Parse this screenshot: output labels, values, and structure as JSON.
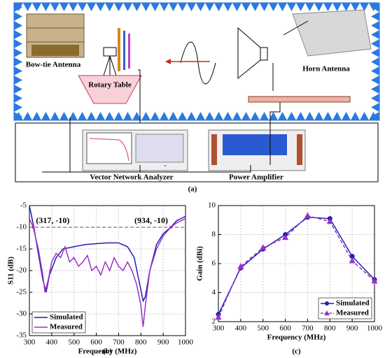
{
  "diagram": {
    "labels": {
      "bowtie": "Bow-tie Antenna",
      "rotary": "Rotary Table",
      "horn": "Horn Antenna",
      "vna": "Vector Network Analyzer",
      "pa": "Power Amplifier"
    },
    "caption": "(a)"
  },
  "chart_data": [
    {
      "type": "line",
      "caption": "(b)",
      "xlabel": "Frequency (MHz)",
      "ylabel": "S11 (dB)",
      "xlim": [
        300,
        1000
      ],
      "xticks": [
        300,
        400,
        500,
        600,
        700,
        800,
        900,
        1000
      ],
      "ylim": [
        -35,
        -5
      ],
      "yticks": [
        -35,
        -30,
        -25,
        -20,
        -15,
        -10,
        -5
      ],
      "grid": true,
      "legend": "lower left",
      "reference_line": -10,
      "annotations": [
        {
          "text": "(317, -10)",
          "x": 317,
          "y": -10
        },
        {
          "text": "(934, -10)",
          "x": 934,
          "y": -10
        }
      ],
      "series": [
        {
          "name": "Simulated",
          "color": "#1f1fb0",
          "linestyle": "solid",
          "x": [
            300,
            320,
            340,
            360,
            375,
            390,
            420,
            450,
            500,
            550,
            600,
            650,
            700,
            740,
            770,
            790,
            810,
            820,
            840,
            870,
            900,
            934,
            960,
            1000
          ],
          "values": [
            -5,
            -10,
            -16,
            -22,
            -25,
            -21,
            -17,
            -15,
            -14.5,
            -14,
            -13.8,
            -13.6,
            -13.6,
            -14.5,
            -17,
            -22,
            -27,
            -26,
            -20,
            -14,
            -11.5,
            -10,
            -8.5,
            -7.5
          ]
        },
        {
          "name": "Measured",
          "color": "#9b30c8",
          "linestyle": "solid",
          "x": [
            300,
            317,
            340,
            360,
            370,
            385,
            400,
            420,
            440,
            460,
            480,
            500,
            520,
            540,
            560,
            580,
            600,
            620,
            640,
            660,
            680,
            700,
            720,
            740,
            760,
            780,
            800,
            810,
            820,
            840,
            870,
            900,
            934,
            960,
            1000
          ],
          "values": [
            -8,
            -10,
            -15,
            -21,
            -25,
            -22,
            -18,
            -16,
            -17,
            -14.5,
            -18,
            -17,
            -19,
            -18,
            -16.5,
            -20,
            -19,
            -21,
            -18,
            -20,
            -17,
            -19,
            -20,
            -18,
            -20,
            -23,
            -28,
            -33,
            -28,
            -20,
            -15,
            -12,
            -10,
            -9,
            -8
          ]
        }
      ]
    },
    {
      "type": "line",
      "caption": "(c)",
      "xlabel": "Frequency (MHz)",
      "ylabel": "Gain (dBi)",
      "xlim": [
        300,
        1000
      ],
      "xticks": [
        300,
        400,
        500,
        600,
        700,
        800,
        900,
        1000
      ],
      "ylim": [
        2,
        10
      ],
      "yticks": [
        2,
        4,
        6,
        8,
        10
      ],
      "grid": true,
      "legend": "lower right",
      "series": [
        {
          "name": "Simulated",
          "color": "#1f1fb0",
          "linestyle": "solid",
          "marker": "circle",
          "x": [
            300,
            400,
            500,
            600,
            700,
            800,
            900,
            1000
          ],
          "values": [
            2.5,
            5.7,
            7.0,
            8.0,
            9.2,
            9.1,
            6.5,
            4.9
          ]
        },
        {
          "name": "Measured",
          "color": "#9b30c8",
          "linestyle": "dashed",
          "marker": "triangle",
          "x": [
            300,
            400,
            500,
            600,
            700,
            800,
            900,
            1000
          ],
          "values": [
            2.3,
            5.8,
            7.1,
            7.8,
            9.3,
            8.9,
            6.2,
            4.8
          ]
        }
      ]
    }
  ]
}
